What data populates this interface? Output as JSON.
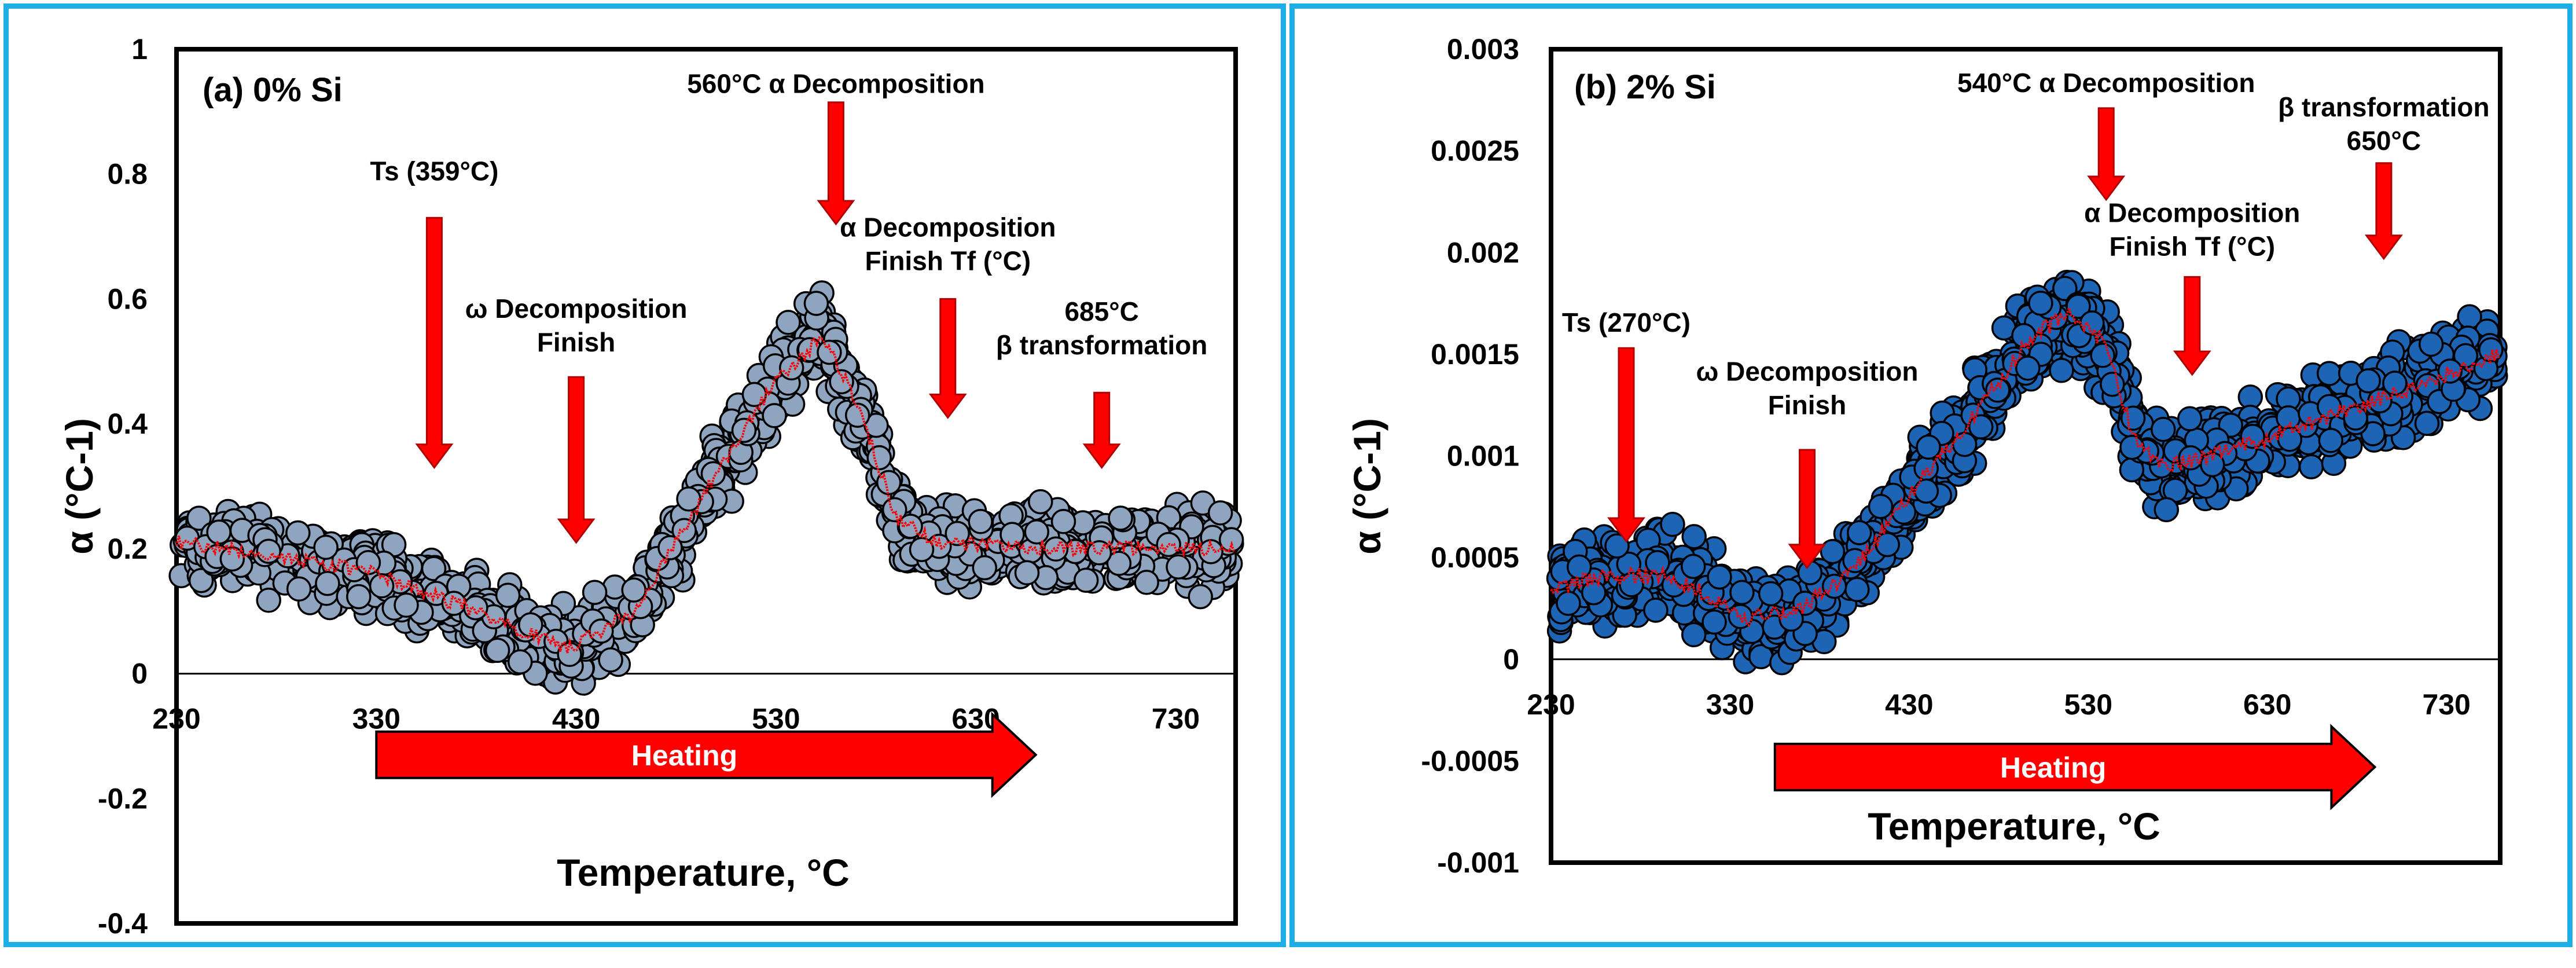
{
  "chart_data": [
    {
      "type": "scatter",
      "panel_label": "(a) 0% Si",
      "xlabel": "Temperature, °C",
      "ylabel": "α (°C-1)",
      "xlim": [
        230,
        760
      ],
      "ylim": [
        -0.4,
        1.0
      ],
      "xticks": [
        230,
        330,
        430,
        530,
        630,
        730
      ],
      "yticks": [
        -0.4,
        -0.2,
        0,
        0.2,
        0.4,
        0.6,
        0.8,
        1.0
      ],
      "ytick_labels": [
        "-0.4",
        "-0.2",
        "0",
        "0.2",
        "0.4",
        "0.6",
        "0.8",
        "1"
      ],
      "marker_color": "#8fa4bf",
      "fit_color": "#ff0000",
      "noise": 0.05,
      "trend": [
        [
          230,
          0.21
        ],
        [
          280,
          0.19
        ],
        [
          330,
          0.16
        ],
        [
          380,
          0.1
        ],
        [
          425,
          0.04
        ],
        [
          460,
          0.1
        ],
        [
          500,
          0.32
        ],
        [
          530,
          0.47
        ],
        [
          553,
          0.54
        ],
        [
          570,
          0.44
        ],
        [
          590,
          0.25
        ],
        [
          610,
          0.21
        ],
        [
          680,
          0.2
        ],
        [
          760,
          0.2
        ]
      ],
      "arrow_text": "Heating",
      "heating_arrow": {
        "x_from": 330,
        "x_to": 660,
        "y": -0.13
      },
      "annotations": [
        {
          "lines": [
            "Ts (359°C)"
          ],
          "x": 359,
          "text_y": 0.79,
          "arrow_top": 0.73,
          "arrow_bottom": 0.33
        },
        {
          "lines": [
            "ω Decomposition",
            "Finish"
          ],
          "x": 430,
          "text_y": 0.57,
          "arrow_top": 0.475,
          "arrow_bottom": 0.21
        },
        {
          "lines": [
            "560°C α Decomposition"
          ],
          "x": 560,
          "text_y": 0.93,
          "arrow_top": 0.915,
          "arrow_bottom": 0.72
        },
        {
          "lines": [
            "α Decomposition",
            "Finish Tf (°C)"
          ],
          "x": 616,
          "text_y": 0.7,
          "arrow_top": 0.6,
          "arrow_bottom": 0.41
        },
        {
          "lines": [
            "685°C",
            "β transformation"
          ],
          "x": 693,
          "text_y": 0.565,
          "arrow_top": 0.45,
          "arrow_bottom": 0.33
        }
      ]
    },
    {
      "type": "scatter",
      "panel_label": "(b) 2% Si",
      "xlabel": "Temperature, °C",
      "ylabel": "α (°C-1)",
      "xlim": [
        230,
        760
      ],
      "ylim": [
        -0.001,
        0.003
      ],
      "xticks": [
        230,
        330,
        430,
        530,
        630,
        730
      ],
      "yticks": [
        -0.001,
        -0.0005,
        0,
        0.0005,
        0.001,
        0.0015,
        0.002,
        0.0025,
        0.003
      ],
      "ytick_labels": [
        "-0.001",
        "-0.0005",
        "0",
        "0.0005",
        "0.001",
        "0.0015",
        "0.002",
        "0.0025",
        "0.003"
      ],
      "marker_color": "#1e64b4",
      "fit_color": "#ff0000",
      "noise": 0.00017,
      "trend": [
        [
          230,
          0.00036
        ],
        [
          260,
          0.0004
        ],
        [
          290,
          0.00042
        ],
        [
          310,
          0.00035
        ],
        [
          340,
          0.0002
        ],
        [
          370,
          0.00025
        ],
        [
          400,
          0.00045
        ],
        [
          430,
          0.0008
        ],
        [
          470,
          0.00125
        ],
        [
          500,
          0.0016
        ],
        [
          520,
          0.0017
        ],
        [
          540,
          0.00155
        ],
        [
          555,
          0.0011
        ],
        [
          570,
          0.00095
        ],
        [
          600,
          0.001
        ],
        [
          650,
          0.00115
        ],
        [
          700,
          0.0013
        ],
        [
          760,
          0.0015
        ]
      ],
      "arrow_text": "Heating",
      "heating_arrow": {
        "x_from": 355,
        "x_to": 690,
        "y": -0.00053
      },
      "annotations": [
        {
          "lines": [
            "Ts (270°C)"
          ],
          "x": 272,
          "text_y": 0.00161,
          "arrow_top": 0.00153,
          "arrow_bottom": 0.00058
        },
        {
          "lines": [
            "ω Decomposition",
            "Finish"
          ],
          "x": 373,
          "text_y": 0.00137,
          "arrow_top": 0.00103,
          "arrow_bottom": 0.00045
        },
        {
          "lines": [
            "540°C α Decomposition"
          ],
          "x": 540,
          "text_y": 0.00279,
          "arrow_top": 0.00271,
          "arrow_bottom": 0.00226
        },
        {
          "lines": [
            "α Decomposition",
            "Finish Tf (°C)"
          ],
          "x": 588,
          "text_y": 0.00215,
          "arrow_top": 0.00188,
          "arrow_bottom": 0.0014
        },
        {
          "lines": [
            "β transformation",
            "650°C"
          ],
          "x": 695,
          "text_y": 0.00267,
          "arrow_top": 0.00244,
          "arrow_bottom": 0.00197
        }
      ]
    }
  ]
}
